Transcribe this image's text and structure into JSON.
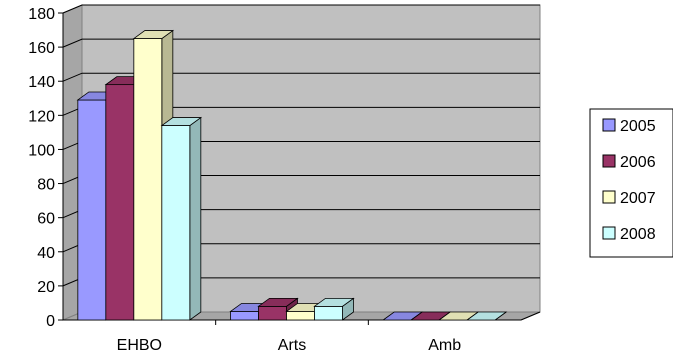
{
  "chart_data": {
    "type": "bar",
    "style": "3d-clustered-column",
    "categories": [
      "EHBO",
      "Arts",
      "Amb"
    ],
    "series": [
      {
        "name": "2005",
        "values": [
          129,
          5,
          0
        ],
        "color": "#9999ff"
      },
      {
        "name": "2006",
        "values": [
          138,
          8,
          0
        ],
        "color": "#993366"
      },
      {
        "name": "2007",
        "values": [
          165,
          5,
          0
        ],
        "color": "#ffffcc"
      },
      {
        "name": "2008",
        "values": [
          114,
          8,
          0
        ],
        "color": "#ccffff"
      }
    ],
    "ylim": [
      0,
      180
    ],
    "yticks": [
      0,
      20,
      40,
      60,
      80,
      100,
      120,
      140,
      160,
      180
    ],
    "grid": true,
    "legend_position": "right",
    "plot_background": "#c0c0c0"
  }
}
